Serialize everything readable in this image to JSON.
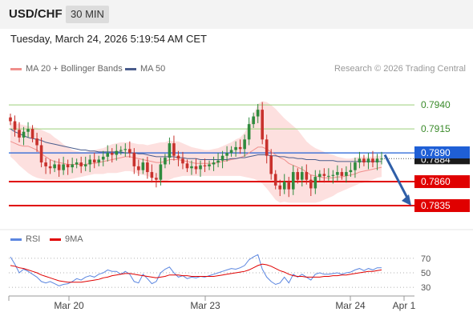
{
  "header": {
    "symbol": "USD/CHF",
    "timeframe": "30 MIN"
  },
  "datetime": "Tuesday, March 24, 2026 5:19:54 AM CET",
  "credit": "Research © 2026 Trading Central",
  "colors": {
    "bollinger_fill": "#fde0df",
    "ma20": "#f08f8c",
    "ma50": "#4a5c8c",
    "bull": "#2f8b3e",
    "bear": "#c8312c",
    "support": "#e00000",
    "pivot": "#1f5fd6",
    "resistance": "#9ccf7a",
    "rsi": "#5b86e0",
    "rsi_ma": "#e00000",
    "arrow": "#2f5fa8"
  },
  "chart_data": [
    {
      "type": "line",
      "name": "price",
      "legend": [
        {
          "name": "MA 20 + Bollinger Bands",
          "color": "#f08f8c"
        },
        {
          "name": "MA 50",
          "color": "#4a5c8c"
        }
      ],
      "x_ticks": [
        "Mar 20",
        "Mar 23",
        "Mar 24",
        "Apr 1"
      ],
      "ylim": [
        0.7815,
        0.7966
      ],
      "levels": [
        {
          "value": 0.794,
          "label": "0.7940",
          "kind": "resistance"
        },
        {
          "value": 0.7915,
          "label": "0.7915",
          "kind": "resistance"
        },
        {
          "value": 0.789,
          "label": "0.7890",
          "kind": "pivot"
        },
        {
          "value": 0.786,
          "label": "0.7860",
          "kind": "support"
        },
        {
          "value": 0.7835,
          "label": "0.7835",
          "kind": "support"
        }
      ],
      "last_price_label": "0.7884",
      "closes": [
        0.7923,
        0.7914,
        0.7906,
        0.7912,
        0.7915,
        0.7905,
        0.7898,
        0.788,
        0.7876,
        0.7874,
        0.7878,
        0.7872,
        0.7878,
        0.7875,
        0.7878,
        0.788,
        0.7876,
        0.7878,
        0.7883,
        0.788,
        0.7883,
        0.7886,
        0.789,
        0.7888,
        0.7892,
        0.7893,
        0.7894,
        0.789,
        0.7876,
        0.7872,
        0.788,
        0.787,
        0.7864,
        0.7862,
        0.7878,
        0.7885,
        0.79,
        0.7887,
        0.7884,
        0.7879,
        0.7874,
        0.7876,
        0.7873,
        0.7877,
        0.7876,
        0.7878,
        0.788,
        0.7882,
        0.7887,
        0.789,
        0.7893,
        0.7896,
        0.7894,
        0.7904,
        0.792,
        0.7928,
        0.7935,
        0.7904,
        0.7887,
        0.7868,
        0.7856,
        0.7852,
        0.786,
        0.7852,
        0.787,
        0.7862,
        0.787,
        0.7862,
        0.7853,
        0.7865,
        0.7868,
        0.7866,
        0.7866,
        0.7867,
        0.787,
        0.7866,
        0.787,
        0.7872,
        0.788,
        0.7884,
        0.788,
        0.7884,
        0.788,
        0.7884,
        0.7884
      ],
      "ma20": [
        0.7902,
        0.79,
        0.7898,
        0.7897,
        0.7897,
        0.7895,
        0.7893,
        0.7889,
        0.7886,
        0.7883,
        0.7881,
        0.788,
        0.7879,
        0.7878,
        0.7878,
        0.7878,
        0.7878,
        0.7878,
        0.7879,
        0.7879,
        0.788,
        0.7881,
        0.7882,
        0.7883,
        0.7884,
        0.7885,
        0.7886,
        0.7886,
        0.7885,
        0.7884,
        0.7883,
        0.7882,
        0.7881,
        0.788,
        0.788,
        0.7881,
        0.7883,
        0.7883,
        0.7883,
        0.7882,
        0.7881,
        0.788,
        0.7879,
        0.7879,
        0.7879,
        0.7879,
        0.7879,
        0.788,
        0.7881,
        0.7882,
        0.7883,
        0.7884,
        0.7885,
        0.7887,
        0.789,
        0.7893,
        0.7896,
        0.7896,
        0.7894,
        0.7891,
        0.7888,
        0.7885,
        0.7883,
        0.7879,
        0.7877,
        0.7875,
        0.7873,
        0.787,
        0.7867,
        0.7866,
        0.7865,
        0.7864,
        0.7864,
        0.7864,
        0.7865,
        0.7865,
        0.7866,
        0.7867,
        0.7868,
        0.787,
        0.7871,
        0.7872,
        0.7873,
        0.7874,
        0.7875
      ],
      "ma50": [
        0.7915,
        0.7912,
        0.791,
        0.7908,
        0.7906,
        0.7905,
        0.7904,
        0.7903,
        0.7901,
        0.79,
        0.7899,
        0.7898,
        0.7897,
        0.7896,
        0.7895,
        0.7894,
        0.7893,
        0.7893,
        0.7892,
        0.7892,
        0.7891,
        0.7891,
        0.7891,
        0.7891,
        0.7891,
        0.7891,
        0.789,
        0.789,
        0.789,
        0.7889,
        0.7889,
        0.7888,
        0.7887,
        0.7886,
        0.7886,
        0.7886,
        0.7886,
        0.7886,
        0.7885,
        0.7885,
        0.7884,
        0.7884,
        0.7884,
        0.7883,
        0.7883,
        0.7883,
        0.7883,
        0.7883,
        0.7883,
        0.7883,
        0.7884,
        0.7884,
        0.7885,
        0.7885,
        0.7886,
        0.7887,
        0.7888,
        0.7888,
        0.7888,
        0.7887,
        0.7887,
        0.7886,
        0.7886,
        0.7885,
        0.7885,
        0.7884,
        0.7884,
        0.7883,
        0.7883,
        0.7883,
        0.7882,
        0.7882,
        0.7882,
        0.7882,
        0.7881,
        0.7881,
        0.7881,
        0.7881,
        0.7881,
        0.7881,
        0.7881,
        0.7881,
        0.7881,
        0.7881,
        0.7881
      ],
      "bb_upper": [
        0.7922,
        0.7921,
        0.792,
        0.7919,
        0.7918,
        0.7917,
        0.7916,
        0.7914,
        0.7912,
        0.791,
        0.7906,
        0.7903,
        0.7899,
        0.7896,
        0.7893,
        0.7892,
        0.7891,
        0.7891,
        0.7892,
        0.7893,
        0.7894,
        0.7895,
        0.7897,
        0.7899,
        0.79,
        0.7901,
        0.7901,
        0.7901,
        0.79,
        0.7899,
        0.7899,
        0.7898,
        0.7899,
        0.79,
        0.7901,
        0.7901,
        0.7903,
        0.7902,
        0.7902,
        0.79,
        0.7898,
        0.7896,
        0.7895,
        0.7894,
        0.7893,
        0.7893,
        0.7894,
        0.7895,
        0.7897,
        0.7899,
        0.7901,
        0.7904,
        0.7906,
        0.7911,
        0.792,
        0.793,
        0.7941,
        0.7944,
        0.7943,
        0.794,
        0.7936,
        0.7931,
        0.7926,
        0.7922,
        0.7918,
        0.7914,
        0.7908,
        0.7902,
        0.7898,
        0.7895,
        0.7893,
        0.7891,
        0.7889,
        0.7888,
        0.7886,
        0.7885,
        0.7884,
        0.7884,
        0.7885,
        0.7886,
        0.7886,
        0.7886,
        0.7886,
        0.7887,
        0.7887
      ],
      "bb_lower": [
        0.7886,
        0.7882,
        0.7877,
        0.7873,
        0.7869,
        0.7866,
        0.7864,
        0.7863,
        0.7862,
        0.7862,
        0.7862,
        0.7862,
        0.7862,
        0.7862,
        0.7863,
        0.7864,
        0.7865,
        0.7866,
        0.7867,
        0.7868,
        0.7868,
        0.7868,
        0.7869,
        0.7869,
        0.7869,
        0.787,
        0.7871,
        0.7871,
        0.787,
        0.7868,
        0.7867,
        0.7866,
        0.7864,
        0.7862,
        0.786,
        0.786,
        0.7862,
        0.7864,
        0.7865,
        0.7866,
        0.7866,
        0.7866,
        0.7866,
        0.7866,
        0.7866,
        0.7866,
        0.7866,
        0.7866,
        0.7866,
        0.7866,
        0.7866,
        0.7866,
        0.7866,
        0.7865,
        0.7864,
        0.7863,
        0.7861,
        0.7858,
        0.7853,
        0.7847,
        0.7841,
        0.7838,
        0.7839,
        0.7838,
        0.7838,
        0.7838,
        0.7838,
        0.7838,
        0.7838,
        0.7838,
        0.7839,
        0.7841,
        0.7843,
        0.7845,
        0.7848,
        0.785,
        0.7852,
        0.7854,
        0.7856,
        0.7858,
        0.7859,
        0.7861,
        0.7862,
        0.7864,
        0.7865
      ],
      "forecast": {
        "from": 0.7888,
        "to": 0.7835
      }
    },
    {
      "type": "line",
      "name": "rsi",
      "legend": [
        {
          "name": "RSI",
          "color": "#5b86e0"
        },
        {
          "name": "9MA",
          "color": "#e00000"
        }
      ],
      "y_ticks": [
        "70",
        "50",
        "30"
      ],
      "ylim": [
        18,
        82
      ],
      "rsi": [
        72,
        62,
        50,
        55,
        52,
        48,
        44,
        38,
        36,
        38,
        35,
        32,
        34,
        35,
        38,
        42,
        40,
        44,
        46,
        44,
        48,
        50,
        54,
        52,
        52,
        48,
        52,
        48,
        38,
        36,
        48,
        42,
        35,
        38,
        50,
        55,
        58,
        50,
        44,
        46,
        42,
        44,
        43,
        45,
        44,
        46,
        48,
        50,
        52,
        54,
        56,
        55,
        57,
        60,
        68,
        72,
        75,
        55,
        44,
        38,
        34,
        36,
        44,
        36,
        48,
        44,
        48,
        44,
        40,
        48,
        50,
        48,
        48,
        49,
        50,
        48,
        50,
        51,
        54,
        56,
        53,
        56,
        54,
        57,
        57
      ],
      "rsi_ma": [
        60,
        59,
        57,
        56,
        54,
        52,
        50,
        47,
        45,
        43,
        41,
        39,
        38,
        37,
        37,
        37,
        37,
        38,
        39,
        40,
        41,
        43,
        44,
        46,
        47,
        48,
        49,
        49,
        48,
        47,
        46,
        45,
        44,
        43,
        44,
        45,
        47,
        47,
        47,
        46,
        46,
        45,
        45,
        45,
        45,
        45,
        45,
        46,
        47,
        48,
        49,
        50,
        51,
        52,
        54,
        57,
        60,
        62,
        61,
        59,
        56,
        53,
        51,
        48,
        46,
        45,
        45,
        44,
        44,
        44,
        44,
        45,
        45,
        46,
        46,
        47,
        47,
        48,
        49,
        50,
        51,
        52,
        52,
        53,
        54
      ]
    }
  ]
}
